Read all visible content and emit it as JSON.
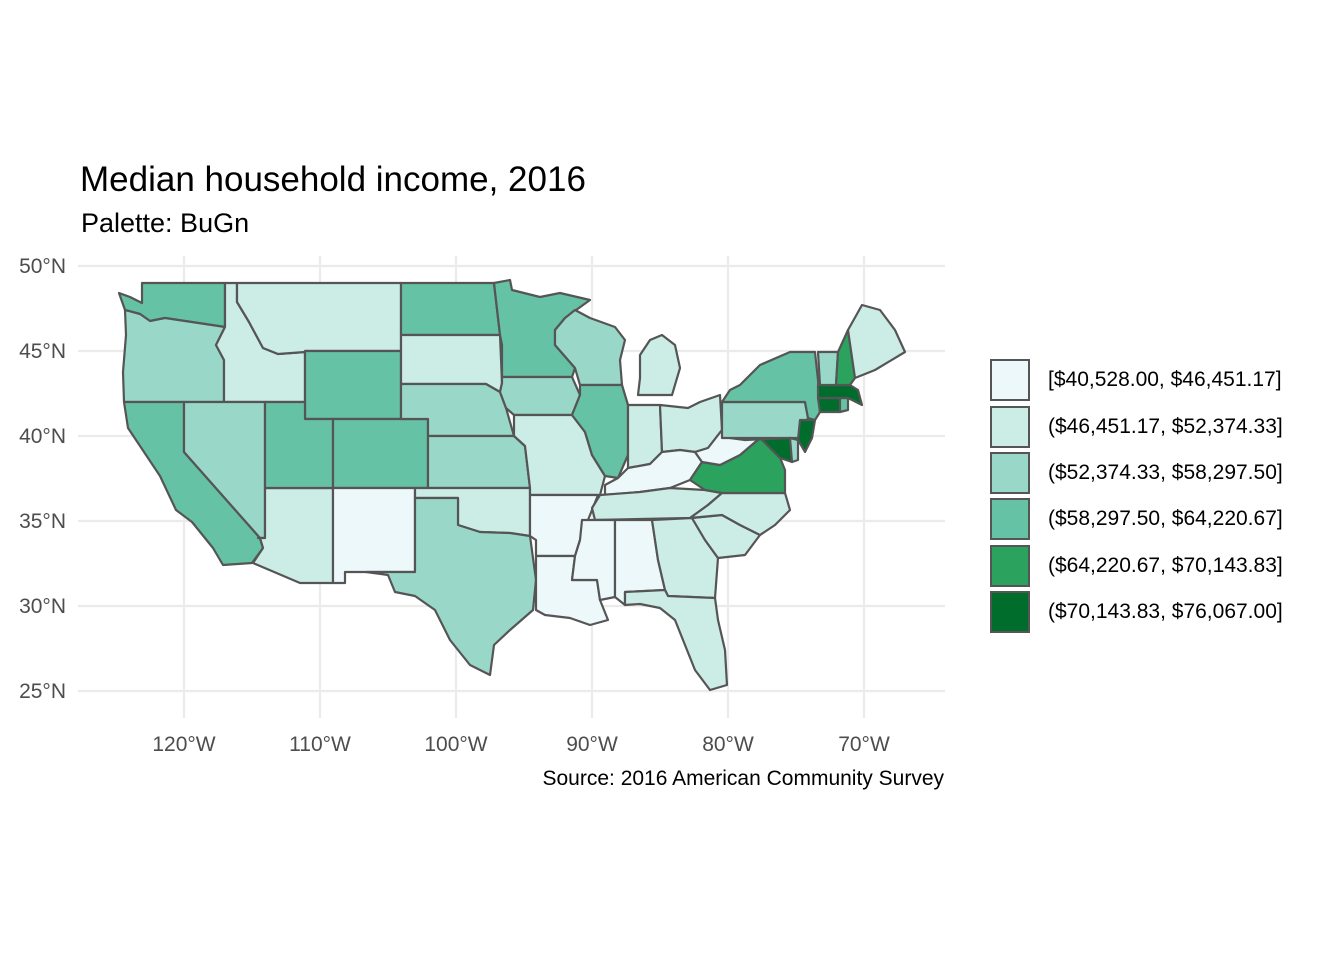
{
  "title": "Median household income, 2016",
  "subtitle": "Palette: BuGn",
  "caption": "Source: 2016 American Community Survey",
  "y_ticks": [
    "50°N",
    "45°N",
    "40°N",
    "35°N",
    "30°N",
    "25°N"
  ],
  "x_ticks": [
    "120°W",
    "110°W",
    "100°W",
    "90°W",
    "80°W",
    "70°W"
  ],
  "legend": {
    "items": [
      {
        "label": "[$40,528.00, $46,451.17]",
        "color": "#edf8fb"
      },
      {
        "label": "($46,451.17, $52,374.33]",
        "color": "#ccece6"
      },
      {
        "label": "($52,374.33, $58,297.50]",
        "color": "#99d8c9"
      },
      {
        "label": "($58,297.50, $64,220.67]",
        "color": "#66c2a4"
      },
      {
        "label": "($64,220.67, $70,143.83]",
        "color": "#2ca25f"
      },
      {
        "label": "($70,143.83, $76,067.00]",
        "color": "#006d2c"
      }
    ]
  },
  "states": [
    {
      "name": "WA",
      "class": 4
    },
    {
      "name": "OR",
      "class": 3
    },
    {
      "name": "CA",
      "class": 4
    },
    {
      "name": "ID",
      "class": 2
    },
    {
      "name": "NV",
      "class": 3
    },
    {
      "name": "AZ",
      "class": 2
    },
    {
      "name": "MT",
      "class": 2
    },
    {
      "name": "WY",
      "class": 4
    },
    {
      "name": "UT",
      "class": 4
    },
    {
      "name": "CO",
      "class": 4
    },
    {
      "name": "NM",
      "class": 1
    },
    {
      "name": "ND",
      "class": 4
    },
    {
      "name": "SD",
      "class": 2
    },
    {
      "name": "NE",
      "class": 3
    },
    {
      "name": "KS",
      "class": 3
    },
    {
      "name": "OK",
      "class": 2
    },
    {
      "name": "TX",
      "class": 3
    },
    {
      "name": "MN",
      "class": 4
    },
    {
      "name": "IA",
      "class": 3
    },
    {
      "name": "MO",
      "class": 2
    },
    {
      "name": "AR",
      "class": 1
    },
    {
      "name": "LA",
      "class": 1
    },
    {
      "name": "WI",
      "class": 3
    },
    {
      "name": "IL",
      "class": 4
    },
    {
      "name": "MI",
      "class": 2
    },
    {
      "name": "IN",
      "class": 2
    },
    {
      "name": "OH",
      "class": 2
    },
    {
      "name": "KY",
      "class": 1
    },
    {
      "name": "TN",
      "class": 2
    },
    {
      "name": "MS",
      "class": 1
    },
    {
      "name": "AL",
      "class": 1
    },
    {
      "name": "GA",
      "class": 2
    },
    {
      "name": "FL",
      "class": 2
    },
    {
      "name": "SC",
      "class": 2
    },
    {
      "name": "NC",
      "class": 2
    },
    {
      "name": "VA",
      "class": 5
    },
    {
      "name": "WV",
      "class": 1
    },
    {
      "name": "PA",
      "class": 3
    },
    {
      "name": "NY",
      "class": 4
    },
    {
      "name": "MD",
      "class": 6
    },
    {
      "name": "DE",
      "class": 3
    },
    {
      "name": "NJ",
      "class": 6
    },
    {
      "name": "CT",
      "class": 6
    },
    {
      "name": "RI",
      "class": 4
    },
    {
      "name": "MA",
      "class": 6
    },
    {
      "name": "VT",
      "class": 3
    },
    {
      "name": "NH",
      "class": 5
    },
    {
      "name": "ME",
      "class": 2
    }
  ]
}
